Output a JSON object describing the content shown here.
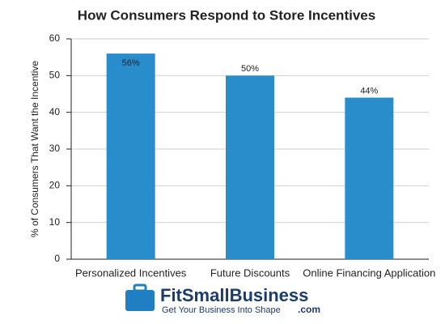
{
  "chart_data": {
    "type": "bar",
    "title": "How Consumers Respond to Store Incentives",
    "y_label": "% of Consumers That Want the Incentive",
    "categories": [
      "Personalized Incentives",
      "Future Discounts",
      "Online Financing Application"
    ],
    "values": [
      56,
      50,
      44
    ],
    "value_labels": [
      "56%",
      "50%",
      "44%"
    ],
    "color": "#2a8dcb",
    "ylim": [
      0,
      60
    ],
    "yticks": [
      0,
      10,
      20,
      30,
      40,
      50,
      60
    ],
    "grid": true
  },
  "logo": {
    "name": "FitSmallBusiness",
    "suffix": ".com",
    "tagline": "Get Your Business Into Shape"
  }
}
